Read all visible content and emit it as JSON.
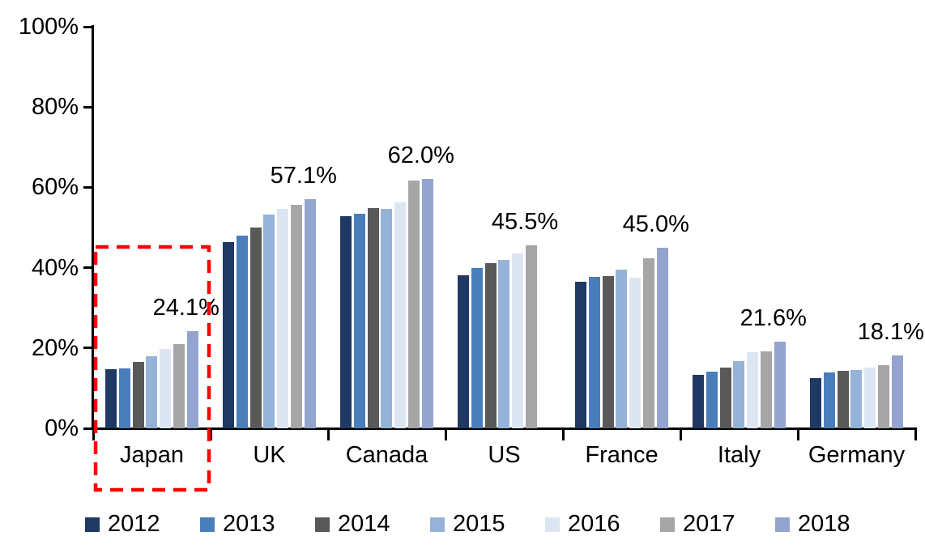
{
  "chart_data": {
    "type": "bar",
    "title": "",
    "categories": [
      "Japan",
      "UK",
      "Canada",
      "US",
      "France",
      "Italy",
      "Germany"
    ],
    "series": [
      {
        "name": "2012",
        "color": "#1F3864",
        "values": [
          14.7,
          46.3,
          52.8,
          38.1,
          36.5,
          13.3,
          12.5
        ]
      },
      {
        "name": "2013",
        "color": "#4A7EBB",
        "values": [
          15.0,
          48.0,
          53.4,
          39.9,
          37.8,
          14.1,
          13.9
        ]
      },
      {
        "name": "2014",
        "color": "#595959",
        "values": [
          16.5,
          50.0,
          54.8,
          41.2,
          37.9,
          15.2,
          14.3
        ]
      },
      {
        "name": "2015",
        "color": "#95B3D7",
        "values": [
          18.0,
          53.3,
          54.6,
          42.0,
          39.5,
          16.8,
          14.6
        ]
      },
      {
        "name": "2016",
        "color": "#DCE6F2",
        "values": [
          19.8,
          54.6,
          56.3,
          43.5,
          37.4,
          19.0,
          15.2
        ]
      },
      {
        "name": "2017",
        "color": "#A6A6A6",
        "values": [
          21.0,
          55.7,
          61.7,
          45.5,
          42.3,
          19.2,
          15.8
        ]
      },
      {
        "name": "2018",
        "color": "#93A4CE",
        "values": [
          24.1,
          57.1,
          62.0,
          null,
          45.0,
          21.6,
          18.1
        ]
      }
    ],
    "data_labels": [
      "24.1%",
      "57.1%",
      "62.0%",
      "45.5%",
      "45.0%",
      "21.6%",
      "18.1%"
    ],
    "yticks": [
      "0%",
      "20%",
      "40%",
      "60%",
      "80%",
      "100%"
    ],
    "ylim": [
      0,
      100
    ],
    "grid": false,
    "legend_position": "bottom",
    "axis_color": "#000000",
    "highlight": {
      "category": "Japan",
      "style": "dashed-box",
      "color": "#FF0000"
    }
  }
}
